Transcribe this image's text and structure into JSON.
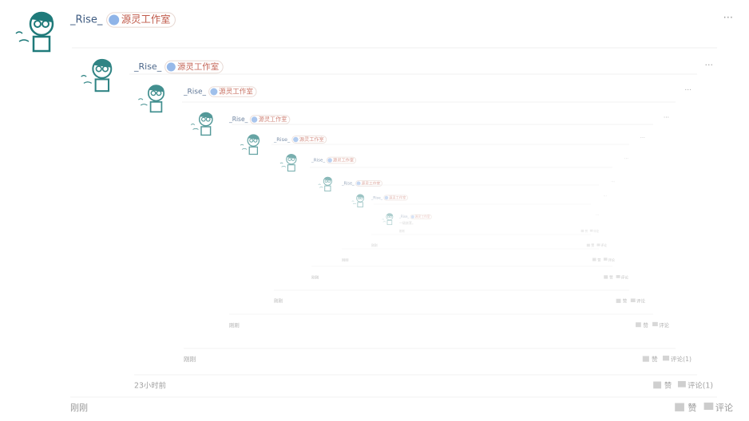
{
  "thread": [
    {
      "user": "_Rise_",
      "badge": "源灵工作室",
      "time": "刚刚",
      "like": "赞",
      "reply": "评论",
      "more": "···"
    },
    {
      "user": "_Rise_",
      "badge": "源灵工作室",
      "time": "23小时前",
      "like": "赞",
      "reply": "评论(1)",
      "more": "···"
    },
    {
      "user": "_Rise_",
      "badge": "源灵工作室",
      "time": "刚刚",
      "like": "赞",
      "reply": "评论(1)",
      "more": "···"
    },
    {
      "user": "_Rise_",
      "badge": "源灵工作室",
      "time": "刚刚",
      "like": "赞",
      "reply": "评论",
      "more": "···"
    },
    {
      "user": "_Rise_",
      "badge": "源灵工作室",
      "time": "刚刚",
      "like": "赞",
      "reply": "评论",
      "more": "···"
    },
    {
      "user": "_Rise_",
      "badge": "源灵工作室",
      "time": "刚刚",
      "like": "赞",
      "reply": "评论",
      "more": "···"
    },
    {
      "user": "_Rise_",
      "badge": "源灵工作室",
      "time": "刚刚",
      "like": "赞",
      "reply": "评论",
      "more": "···"
    },
    {
      "user": "_Rise_",
      "badge": "源灵工作室",
      "time": "刚刚",
      "like": "赞",
      "reply": "评论",
      "more": "···"
    },
    {
      "user": "_Rise_",
      "badge": "源灵工作室",
      "text": "一级嵌套。",
      "time": "刚刚",
      "like": "赞",
      "reply": "评论",
      "more": "···"
    }
  ]
}
